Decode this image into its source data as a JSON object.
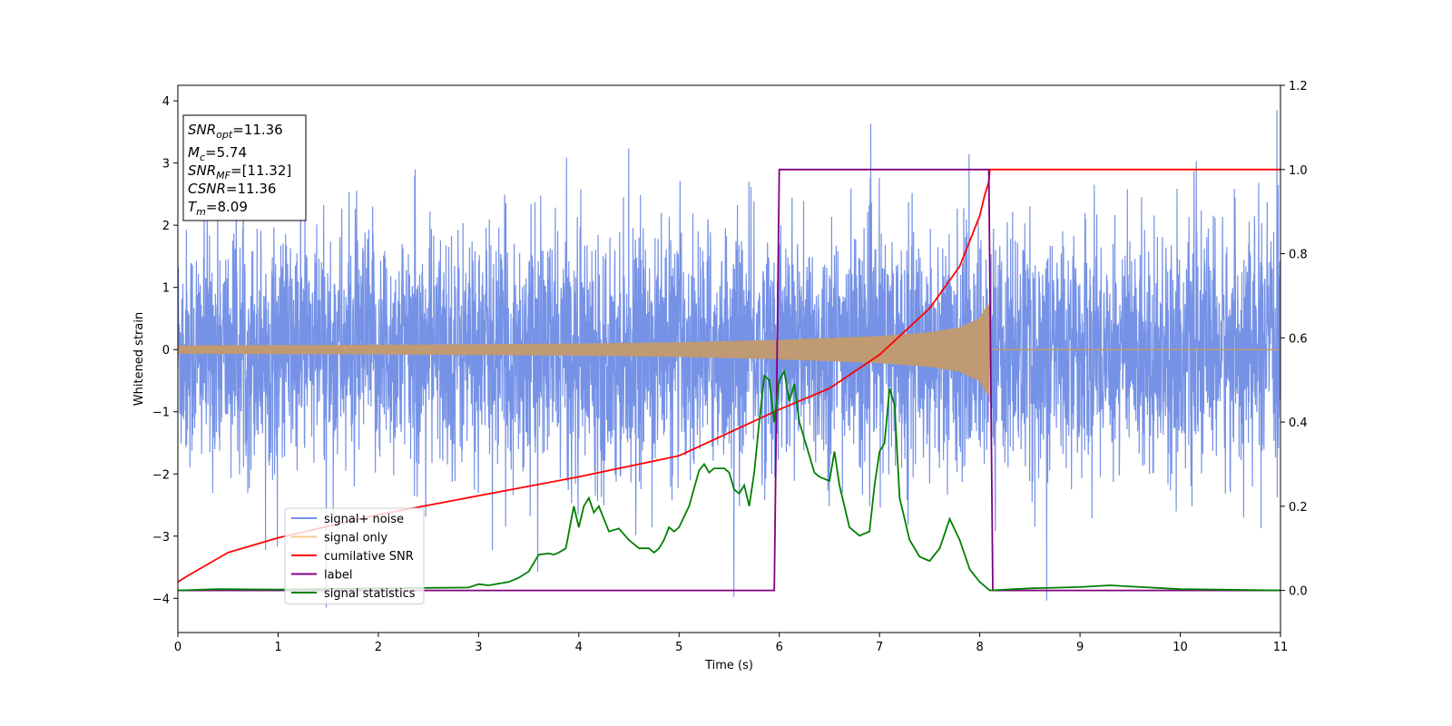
{
  "chart_data": {
    "type": "line",
    "xlabel": "Time (s)",
    "ylabel": "Whitened strain",
    "ylabel_right": "",
    "xlim": [
      0,
      11
    ],
    "ylim_left": [
      -4.55,
      4.25
    ],
    "ylim_right": [
      -0.1,
      1.2
    ],
    "x_ticks": [
      "0",
      "1",
      "2",
      "3",
      "4",
      "5",
      "6",
      "7",
      "8",
      "9",
      "10",
      "11"
    ],
    "y_left_ticks": [
      "−4",
      "−3",
      "−2",
      "−1",
      "0",
      "1",
      "2",
      "3",
      "4"
    ],
    "y_right_ticks": [
      "0.0",
      "0.2",
      "0.4",
      "0.6",
      "0.8",
      "1.0",
      "1.2"
    ],
    "grid": false,
    "legend_position": "lower-left",
    "legend": [
      {
        "label": "signal+ noise",
        "color": "#7592e6"
      },
      {
        "label": "signal only",
        "color": "#f7c98b"
      },
      {
        "label": "cumilative SNR",
        "color": "#ff0000"
      },
      {
        "label": "label",
        "color": "#800080"
      },
      {
        "label": "signal statistics",
        "color": "#008000"
      }
    ],
    "info_box": {
      "lines": [
        {
          "sym": "SNR",
          "sub": "opt",
          "val": "=11.36"
        },
        {
          "sym": "M",
          "sub": "c",
          "val": "=5.74"
        },
        {
          "sym": "SNR",
          "sub": "MF",
          "val": "=[11.32]"
        },
        {
          "sym": "CSNR",
          "sub": "",
          "val": "=11.36"
        },
        {
          "sym": "T",
          "sub": "m",
          "val": "=8.09"
        }
      ]
    },
    "series": [
      {
        "name": "signal+ noise",
        "axis": "left",
        "color": "#7592e6",
        "style": "noise",
        "x_range": [
          0,
          11
        ],
        "typical_amplitude": [
          -2.0,
          2.3
        ],
        "extreme_range": [
          -4.15,
          3.85
        ]
      },
      {
        "name": "signal only",
        "axis": "left",
        "color": "#f7c98b",
        "style": "chirp-envelope",
        "x_range": [
          0,
          8.1
        ],
        "envelope": {
          "x": [
            0,
            2,
            4,
            5,
            6,
            7,
            7.5,
            7.8,
            8.0,
            8.09,
            8.1
          ],
          "amp": [
            0.06,
            0.07,
            0.09,
            0.11,
            0.15,
            0.21,
            0.27,
            0.35,
            0.5,
            0.75,
            0.0
          ]
        }
      },
      {
        "name": "cumilative SNR",
        "axis": "right",
        "color": "#ff0000",
        "style": "line",
        "x": [
          0,
          0.1,
          0.5,
          1,
          2,
          3,
          4,
          5,
          6,
          6.5,
          7,
          7.5,
          7.8,
          8.0,
          8.05,
          8.09,
          8.1,
          11
        ],
        "values": [
          0.02,
          0.035,
          0.09,
          0.125,
          0.18,
          0.225,
          0.27,
          0.32,
          0.43,
          0.48,
          0.56,
          0.67,
          0.77,
          0.89,
          0.94,
          0.97,
          1.0,
          1.0
        ]
      },
      {
        "name": "label",
        "axis": "right",
        "color": "#800080",
        "style": "line",
        "x": [
          0,
          5.95,
          6.0,
          8.09,
          8.13,
          11
        ],
        "values": [
          0,
          0,
          1,
          1,
          0,
          0
        ]
      },
      {
        "name": "signal statistics",
        "axis": "right",
        "color": "#008000",
        "style": "line",
        "x": [
          0,
          0.4,
          1,
          2,
          2.5,
          2.9,
          3.0,
          3.1,
          3.3,
          3.4,
          3.5,
          3.6,
          3.7,
          3.75,
          3.8,
          3.87,
          3.95,
          4.0,
          4.05,
          4.1,
          4.15,
          4.2,
          4.3,
          4.4,
          4.5,
          4.6,
          4.7,
          4.75,
          4.8,
          4.85,
          4.9,
          4.95,
          5.0,
          5.1,
          5.2,
          5.25,
          5.3,
          5.35,
          5.45,
          5.5,
          5.55,
          5.6,
          5.65,
          5.7,
          5.75,
          5.8,
          5.85,
          5.9,
          5.95,
          6.0,
          6.05,
          6.1,
          6.15,
          6.2,
          6.3,
          6.35,
          6.4,
          6.5,
          6.55,
          6.6,
          6.7,
          6.8,
          6.9,
          6.95,
          7.0,
          7.05,
          7.1,
          7.15,
          7.2,
          7.3,
          7.4,
          7.5,
          7.6,
          7.7,
          7.8,
          7.9,
          8.0,
          8.1,
          8.5,
          9.0,
          9.3,
          10.0,
          11.0
        ],
        "values": [
          0.0,
          0.003,
          0.002,
          0.005,
          0.006,
          0.007,
          0.015,
          0.012,
          0.02,
          0.03,
          0.045,
          0.085,
          0.088,
          0.085,
          0.09,
          0.1,
          0.2,
          0.15,
          0.2,
          0.22,
          0.185,
          0.2,
          0.14,
          0.147,
          0.12,
          0.1,
          0.1,
          0.09,
          0.1,
          0.12,
          0.15,
          0.14,
          0.15,
          0.2,
          0.285,
          0.3,
          0.28,
          0.29,
          0.29,
          0.28,
          0.24,
          0.23,
          0.25,
          0.2,
          0.28,
          0.4,
          0.51,
          0.5,
          0.4,
          0.5,
          0.52,
          0.45,
          0.49,
          0.4,
          0.32,
          0.28,
          0.27,
          0.26,
          0.33,
          0.25,
          0.15,
          0.13,
          0.14,
          0.25,
          0.33,
          0.35,
          0.48,
          0.44,
          0.22,
          0.12,
          0.08,
          0.07,
          0.1,
          0.17,
          0.12,
          0.05,
          0.02,
          0.0,
          0.005,
          0.008,
          0.012,
          0.003,
          0.0
        ]
      }
    ]
  }
}
